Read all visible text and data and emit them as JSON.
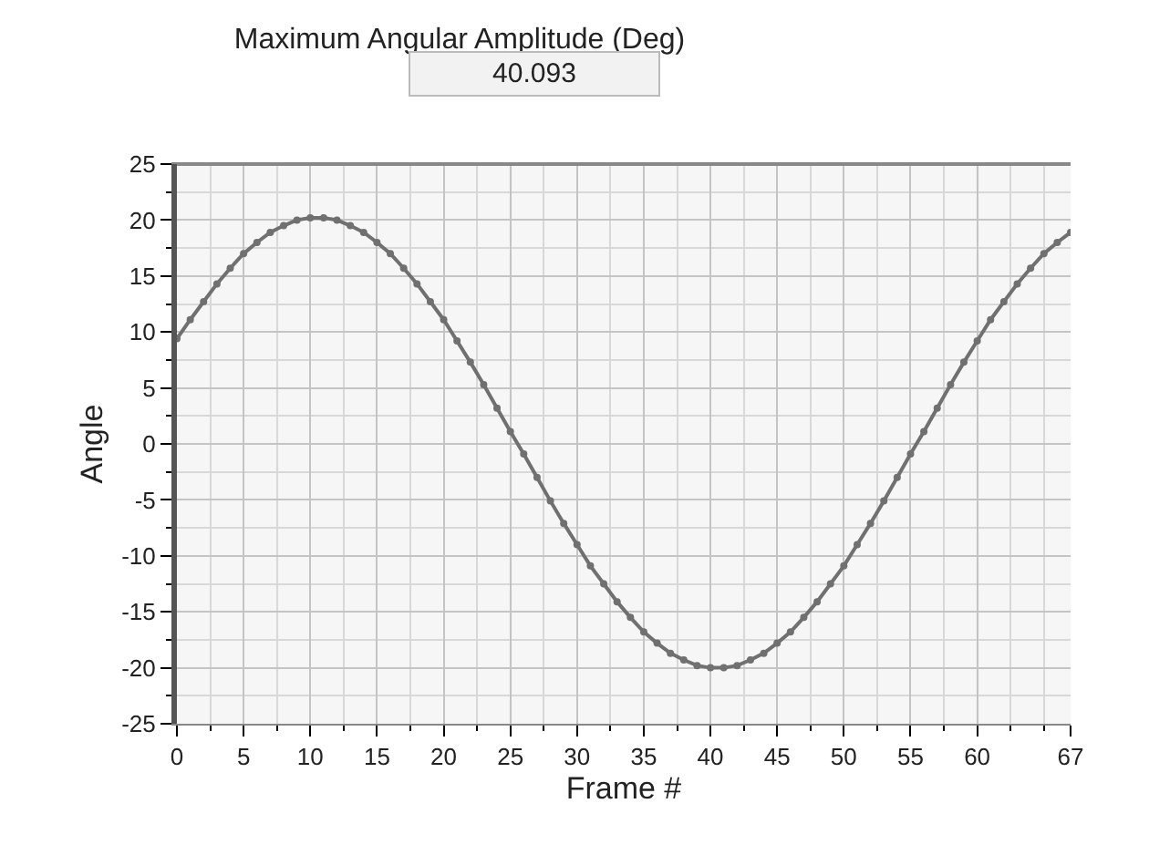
{
  "chart_data": {
    "type": "line",
    "title": "Maximum Angular Amplitude (Deg)",
    "annotations": [
      "40.093"
    ],
    "xlabel": "Frame #",
    "ylabel": "Angle",
    "x": [
      0,
      1,
      2,
      3,
      4,
      5,
      6,
      7,
      8,
      9,
      10,
      11,
      12,
      13,
      14,
      15,
      16,
      17,
      18,
      19,
      20,
      21,
      22,
      23,
      24,
      25,
      26,
      27,
      28,
      29,
      30,
      31,
      32,
      33,
      34,
      35,
      36,
      37,
      38,
      39,
      40,
      41,
      42,
      43,
      44,
      45,
      46,
      47,
      48,
      49,
      50,
      51,
      52,
      53,
      54,
      55,
      56,
      57,
      58,
      59,
      60,
      61,
      62,
      63,
      64,
      65,
      66,
      67
    ],
    "series": [
      {
        "color": "#707070",
        "values": [
          9.4,
          11.1,
          12.7,
          14.3,
          15.7,
          17.0,
          18.0,
          18.9,
          19.5,
          20.0,
          20.2,
          20.2,
          20.0,
          19.5,
          18.9,
          18.0,
          17.0,
          15.7,
          14.3,
          12.7,
          11.1,
          9.2,
          7.3,
          5.3,
          3.2,
          1.1,
          -0.9,
          -3.0,
          -5.1,
          -7.1,
          -9.0,
          -10.9,
          -12.5,
          -14.1,
          -15.5,
          -16.8,
          -17.8,
          -18.7,
          -19.3,
          -19.8,
          -20.0,
          -20.0,
          -19.8,
          -19.3,
          -18.7,
          -17.8,
          -16.8,
          -15.5,
          -14.1,
          -12.5,
          -10.9,
          -9.0,
          -7.1,
          -5.1,
          -3.0,
          -0.9,
          1.1,
          3.2,
          5.3,
          7.3,
          9.2,
          11.1,
          12.7,
          14.3,
          15.7,
          17.0,
          18.0,
          18.9
        ]
      }
    ],
    "xlim": [
      0,
      67
    ],
    "xticks": [
      0,
      5,
      10,
      15,
      20,
      25,
      30,
      35,
      40,
      45,
      50,
      55,
      60,
      67
    ],
    "ylim": [
      -25,
      25
    ],
    "yticks": [
      -25,
      -20,
      -15,
      -10,
      -5,
      0,
      5,
      10,
      15,
      20,
      25
    ],
    "grid": true,
    "marker": "circle",
    "line_style": "solid"
  }
}
